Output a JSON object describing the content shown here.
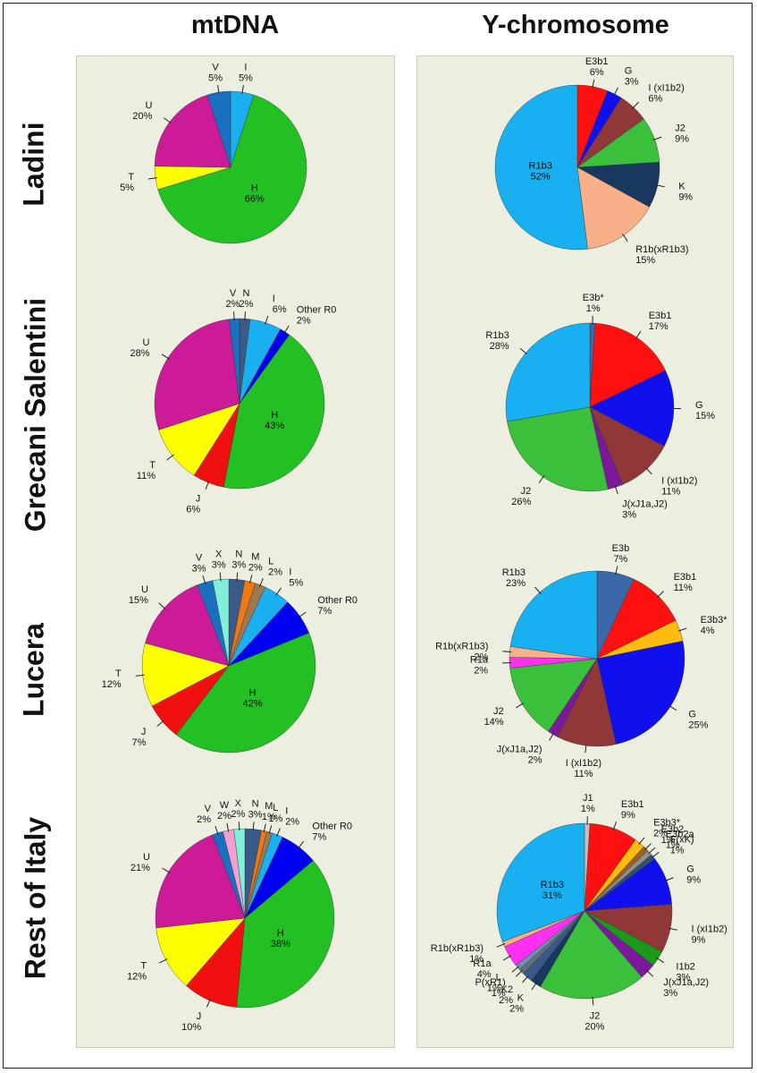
{
  "headers": {
    "mtdna": "mtDNA",
    "y": "Y-chromosome"
  },
  "rows": [
    "Ladini",
    "Grecani Salentini",
    "Lucera",
    "Rest of Italy"
  ],
  "colors": {
    "I": "#1ab0f0",
    "H": "#22c022",
    "T": "#ffff00",
    "U": "#cc1a99",
    "V": "#1a70c0",
    "N": "#3a5a8a",
    "OtherR0": "#0000f0",
    "J": "#f01010",
    "X": "#80f0d8",
    "M": "#f07a10",
    "L": "#a07850",
    "W": "#f0a0d0",
    "E3b1": "#ff1010",
    "G": "#1010ee",
    "Ixl1b2": "#903838",
    "J2": "#3ac03a",
    "K": "#18385e",
    "R1bx": "#f8b088",
    "R1b3": "#18b0f0",
    "E3bstar": "#3a68a8",
    "JxJ1a": "#7a1a9a",
    "E3b": "#3a68a8",
    "E3b3star": "#ffbb10",
    "R1a": "#ff30f0",
    "J1": "#c0c0c0",
    "E3b2": "#9a6020",
    "E3b2a": "#909090",
    "FxK": "#305070",
    "I1b2": "#1a9a1a",
    "K2": "#3a5888",
    "PxR1": "#607080",
    "Lh": "#7090b0"
  },
  "chart_data": [
    {
      "id": "ladini-mtdna",
      "type": "pie",
      "slices": [
        {
          "label": "I",
          "pct": "5%",
          "value": 5,
          "color": "I"
        },
        {
          "label": "H",
          "pct": "66%",
          "value": 66,
          "color": "H"
        },
        {
          "label": "T",
          "pct": "5%",
          "value": 5,
          "color": "T"
        },
        {
          "label": "U",
          "pct": "20%",
          "value": 20,
          "color": "U"
        },
        {
          "label": "V",
          "pct": "5%",
          "value": 5,
          "color": "V"
        }
      ]
    },
    {
      "id": "ladini-y",
      "type": "pie",
      "slices": [
        {
          "label": "E3b1",
          "pct": "6%",
          "value": 6,
          "color": "E3b1"
        },
        {
          "label": "G",
          "pct": "3%",
          "value": 3,
          "color": "G"
        },
        {
          "label": "I (xI1b2)",
          "pct": "6%",
          "value": 6,
          "color": "Ixl1b2"
        },
        {
          "label": "J2",
          "pct": "9%",
          "value": 9,
          "color": "J2"
        },
        {
          "label": "K",
          "pct": "9%",
          "value": 9,
          "color": "K"
        },
        {
          "label": "R1b(xR1b3)",
          "pct": "15%",
          "value": 15,
          "color": "R1bx"
        },
        {
          "label": "R1b3",
          "pct": "52%",
          "value": 52,
          "color": "R1b3"
        }
      ]
    },
    {
      "id": "grecani-mtdna",
      "type": "pie",
      "slices": [
        {
          "label": "N",
          "pct": "2%",
          "value": 2,
          "color": "N"
        },
        {
          "label": "I",
          "pct": "6%",
          "value": 6,
          "color": "I"
        },
        {
          "label": "Other R0",
          "pct": "2%",
          "value": 2,
          "color": "OtherR0"
        },
        {
          "label": "H",
          "pct": "43%",
          "value": 43,
          "color": "H"
        },
        {
          "label": "J",
          "pct": "6%",
          "value": 6,
          "color": "J"
        },
        {
          "label": "T",
          "pct": "11%",
          "value": 11,
          "color": "T"
        },
        {
          "label": "U",
          "pct": "28%",
          "value": 28,
          "color": "U"
        },
        {
          "label": "V",
          "pct": "2%",
          "value": 2,
          "color": "V"
        }
      ]
    },
    {
      "id": "grecani-y",
      "type": "pie",
      "slices": [
        {
          "label": "E3b*",
          "pct": "1%",
          "value": 1,
          "color": "E3bstar"
        },
        {
          "label": "E3b1",
          "pct": "17%",
          "value": 17,
          "color": "E3b1"
        },
        {
          "label": "G",
          "pct": "15%",
          "value": 15,
          "color": "G"
        },
        {
          "label": "I (xI1b2)",
          "pct": "11%",
          "value": 11,
          "color": "Ixl1b2"
        },
        {
          "label": "J(xJ1a,J2)",
          "pct": "3%",
          "value": 3,
          "color": "JxJ1a"
        },
        {
          "label": "J2",
          "pct": "26%",
          "value": 26,
          "color": "J2"
        },
        {
          "label": "R1b3",
          "pct": "28%",
          "value": 28,
          "color": "R1b3"
        }
      ]
    },
    {
      "id": "lucera-mtdna",
      "type": "pie",
      "slices": [
        {
          "label": "N",
          "pct": "3%",
          "value": 3,
          "color": "N"
        },
        {
          "label": "M",
          "pct": "2%",
          "value": 2,
          "color": "M"
        },
        {
          "label": "L",
          "pct": "2%",
          "value": 2,
          "color": "L"
        },
        {
          "label": "I",
          "pct": "5%",
          "value": 5,
          "color": "I"
        },
        {
          "label": "Other R0",
          "pct": "7%",
          "value": 7,
          "color": "OtherR0"
        },
        {
          "label": "H",
          "pct": "42%",
          "value": 42,
          "color": "H"
        },
        {
          "label": "J",
          "pct": "7%",
          "value": 7,
          "color": "J"
        },
        {
          "label": "T",
          "pct": "12%",
          "value": 12,
          "color": "T"
        },
        {
          "label": "U",
          "pct": "15%",
          "value": 15,
          "color": "U"
        },
        {
          "label": "V",
          "pct": "3%",
          "value": 3,
          "color": "V"
        },
        {
          "label": "X",
          "pct": "3%",
          "value": 3,
          "color": "X"
        }
      ]
    },
    {
      "id": "lucera-y",
      "type": "pie",
      "slices": [
        {
          "label": "E3b",
          "pct": "7%",
          "value": 7,
          "color": "E3b"
        },
        {
          "label": "E3b1",
          "pct": "11%",
          "value": 11,
          "color": "E3b1"
        },
        {
          "label": "E3b3*",
          "pct": "4%",
          "value": 4,
          "color": "E3b3star"
        },
        {
          "label": "G",
          "pct": "25%",
          "value": 25,
          "color": "G"
        },
        {
          "label": "I (xI1b2)",
          "pct": "11%",
          "value": 11,
          "color": "Ixl1b2"
        },
        {
          "label": "J(xJ1a,J2)",
          "pct": "2%",
          "value": 2,
          "color": "JxJ1a"
        },
        {
          "label": "J2",
          "pct": "14%",
          "value": 14,
          "color": "J2"
        },
        {
          "label": "R1a",
          "pct": "2%",
          "value": 2,
          "color": "R1a"
        },
        {
          "label": "R1b(xR1b3)",
          "pct": "2%",
          "value": 2,
          "color": "R1bx"
        },
        {
          "label": "R1b3",
          "pct": "23%",
          "value": 23,
          "color": "R1b3"
        }
      ]
    },
    {
      "id": "italy-mtdna",
      "type": "pie",
      "slices": [
        {
          "label": "N",
          "pct": "3%",
          "value": 3,
          "color": "N"
        },
        {
          "label": "M",
          "pct": "1%",
          "value": 1,
          "color": "M"
        },
        {
          "label": "L",
          "pct": "1%",
          "value": 1,
          "color": "L"
        },
        {
          "label": "I",
          "pct": "2%",
          "value": 2,
          "color": "I"
        },
        {
          "label": "Other R0",
          "pct": "7%",
          "value": 7,
          "color": "OtherR0"
        },
        {
          "label": "H",
          "pct": "38%",
          "value": 38,
          "color": "H"
        },
        {
          "label": "J",
          "pct": "10%",
          "value": 10,
          "color": "J"
        },
        {
          "label": "T",
          "pct": "12%",
          "value": 12,
          "color": "T"
        },
        {
          "label": "U",
          "pct": "21%",
          "value": 21,
          "color": "U"
        },
        {
          "label": "V",
          "pct": "2%",
          "value": 2,
          "color": "V"
        },
        {
          "label": "W",
          "pct": "2%",
          "value": 2,
          "color": "W"
        },
        {
          "label": "X",
          "pct": "2%",
          "value": 2,
          "color": "X"
        }
      ]
    },
    {
      "id": "italy-y",
      "type": "pie",
      "slices": [
        {
          "label": "J1",
          "pct": "1%",
          "value": 1,
          "color": "J1"
        },
        {
          "label": "E3b1",
          "pct": "9%",
          "value": 9,
          "color": "E3b1"
        },
        {
          "label": "E3b3*",
          "pct": "2%",
          "value": 2,
          "color": "E3b3star"
        },
        {
          "label": "E3b2",
          "pct": "1%",
          "value": 1,
          "color": "E3b2"
        },
        {
          "label": "E3b2a",
          "pct": "1%",
          "value": 1,
          "color": "E3b2a"
        },
        {
          "label": "F(xK)",
          "pct": "1%",
          "value": 1,
          "color": "FxK"
        },
        {
          "label": "G",
          "pct": "9%",
          "value": 9,
          "color": "G"
        },
        {
          "label": "I (xI1b2)",
          "pct": "9%",
          "value": 9,
          "color": "Ixl1b2"
        },
        {
          "label": "I1b2",
          "pct": "3%",
          "value": 3,
          "color": "I1b2"
        },
        {
          "label": "J(xJ1a,J2)",
          "pct": "3%",
          "value": 3,
          "color": "JxJ1a"
        },
        {
          "label": "J2",
          "pct": "20%",
          "value": 20,
          "color": "J2"
        },
        {
          "label": "K",
          "pct": "2%",
          "value": 2,
          "color": "K"
        },
        {
          "label": "K2",
          "pct": "2%",
          "value": 2,
          "color": "K2"
        },
        {
          "label": "P(xR1)",
          "pct": "1%",
          "value": 1,
          "color": "PxR1"
        },
        {
          "label": "L",
          "pct": "1%",
          "value": 1,
          "color": "Lh"
        },
        {
          "label": "R1a",
          "pct": "4%",
          "value": 4,
          "color": "R1a"
        },
        {
          "label": "R1b(xR1b3)",
          "pct": "1%",
          "value": 1,
          "color": "R1bx"
        },
        {
          "label": "R1b3",
          "pct": "31%",
          "value": 31,
          "color": "R1b3"
        }
      ]
    }
  ]
}
